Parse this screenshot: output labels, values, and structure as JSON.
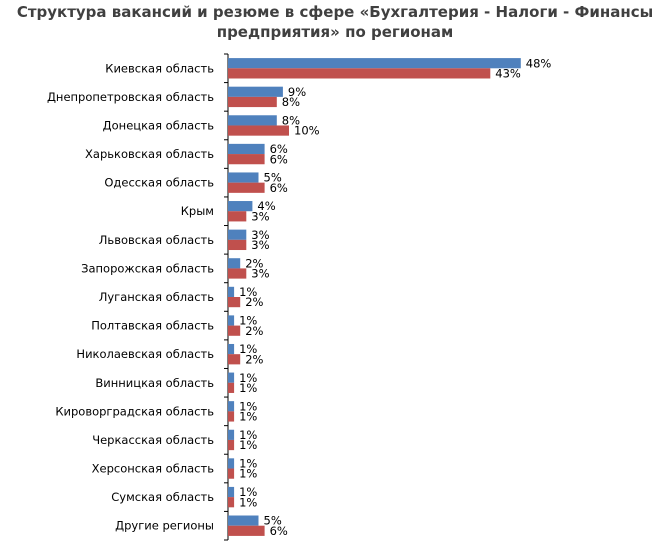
{
  "title_line1": "Структура вакансий и резюме в сфере «Бухгалтерия - Налоги - Финансы",
  "title_line2": "предприятия» по регионам",
  "colors": {
    "series_a": "#4F81BD",
    "series_b": "#C0504D",
    "axis": "#000000",
    "text": "#000000"
  },
  "chart_data": {
    "type": "bar",
    "orientation": "horizontal",
    "title": "Структура вакансий и резюме в сфере «Бухгалтерия - Налоги - Финансы предприятия» по регионам",
    "categories": [
      "Киевская область",
      "Днепропетровская область",
      "Донецкая область",
      "Харьковская область",
      "Одесская область",
      "Крым",
      "Львовская область",
      "Запорожская область",
      "Луганская область",
      "Полтавская область",
      "Николаевская область",
      "Винницкая область",
      "Кироворградская область",
      "Черкасская область",
      "Херсонская область",
      "Сумская область",
      "Другие регионы"
    ],
    "series": [
      {
        "values": [
          48,
          9,
          8,
          6,
          5,
          4,
          3,
          2,
          1,
          1,
          1,
          1,
          1,
          1,
          1,
          1,
          5
        ],
        "labels": [
          "48%",
          "9%",
          "8%",
          "6%",
          "5%",
          "4%",
          "3%",
          "2%",
          "1%",
          "1%",
          "1%",
          "1%",
          "1%",
          "1%",
          "1%",
          "1%",
          "5%"
        ]
      },
      {
        "values": [
          43,
          8,
          10,
          6,
          6,
          3,
          3,
          3,
          2,
          2,
          2,
          1,
          1,
          1,
          1,
          1,
          6
        ],
        "labels": [
          "43%",
          "8%",
          "10%",
          "6%",
          "6%",
          "3%",
          "3%",
          "3%",
          "2%",
          "2%",
          "2%",
          "1%",
          "1%",
          "1%",
          "1%",
          "1%",
          "6%"
        ]
      }
    ],
    "xlim": [
      0,
      50
    ],
    "grid": false,
    "legend": "none"
  }
}
